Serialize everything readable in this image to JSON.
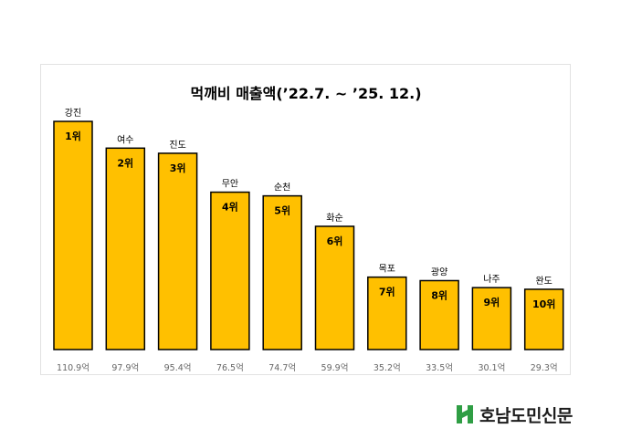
{
  "chart_data": {
    "type": "bar",
    "title": "먹깨비 매출액(’22.7. ~ ’25. 12.)",
    "categories": [
      "강진",
      "여수",
      "진도",
      "무안",
      "순천",
      "화순",
      "목포",
      "광양",
      "나주",
      "완도"
    ],
    "ranks": [
      "1위",
      "2위",
      "3위",
      "4위",
      "5위",
      "6위",
      "7위",
      "8위",
      "9위",
      "10위"
    ],
    "values": [
      110.9,
      97.9,
      95.4,
      76.5,
      74.7,
      59.9,
      35.2,
      33.5,
      30.1,
      29.3
    ],
    "value_labels": [
      "110.9억",
      "97.9억",
      "95.4억",
      "76.5억",
      "74.7억",
      "59.9억",
      "35.2억",
      "33.5억",
      "30.1억",
      "29.3억"
    ],
    "unit": "억",
    "ylim": [
      0,
      110.9
    ],
    "grid": false,
    "colors": {
      "bar": "#FFC000",
      "bar_outline": "#000000",
      "text": "#000000",
      "value_text": "#666666"
    }
  },
  "brand": {
    "name": "호남도민신문",
    "logo_color": "#2F9E44",
    "logo_icon": "hn-logo-icon"
  }
}
